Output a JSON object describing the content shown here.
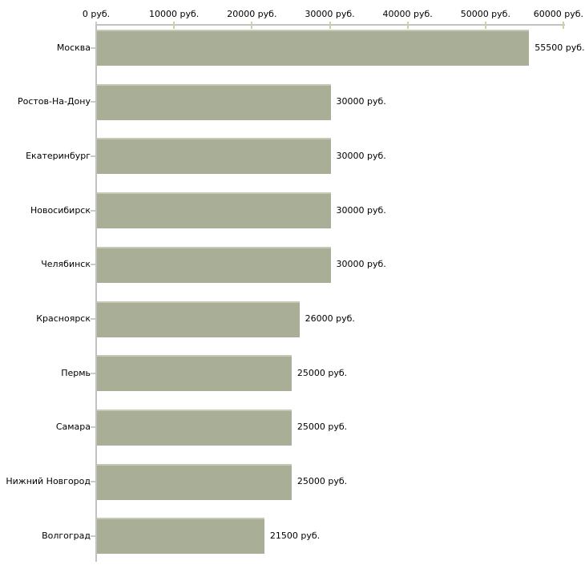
{
  "chart_data": {
    "type": "bar",
    "orientation": "horizontal",
    "title": "",
    "categories": [
      "Москва",
      "Ростов-На-Дону",
      "Екатеринбург",
      "Новосибирск",
      "Челябинск",
      "Красноярск",
      "Пермь",
      "Самара",
      "Нижний Новгород",
      "Волгоград"
    ],
    "values": [
      55500,
      30000,
      30000,
      30000,
      30000,
      26000,
      25000,
      25000,
      25000,
      21500
    ],
    "value_labels": [
      "55500 руб.",
      "30000 руб.",
      "30000 руб.",
      "30000 руб.",
      "30000 руб.",
      "26000 руб.",
      "25000 руб.",
      "25000 руб.",
      "25000 руб.",
      "21500 руб."
    ],
    "x_ticks": [
      0,
      10000,
      20000,
      30000,
      40000,
      50000,
      60000
    ],
    "x_tick_labels": [
      "0 руб.",
      "10000 руб.",
      "20000 руб.",
      "30000 руб.",
      "40000 руб.",
      "50000 руб.",
      "60000 руб."
    ],
    "xlim": [
      0,
      60000
    ],
    "unit": "руб.",
    "xlabel": "",
    "ylabel": "",
    "grid": false,
    "legend": null
  },
  "colors": {
    "background": "#ffffff",
    "bar_fill": "#a9ae96",
    "bar_highlight": "#c6c9b4",
    "axis_line": "#c2c2c2",
    "x_tick": "#ccd0ab",
    "y_tick": "#c9ccbf",
    "text": "#000000"
  }
}
